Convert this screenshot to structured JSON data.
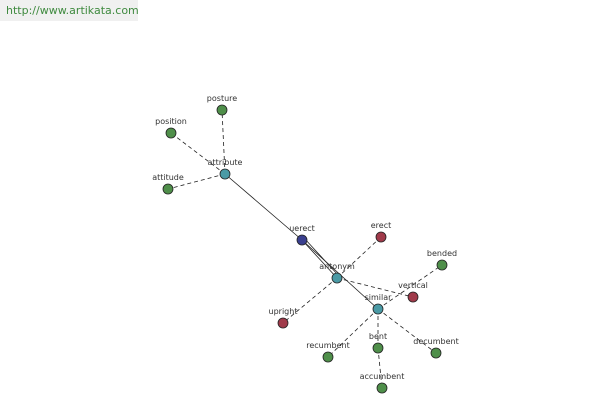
{
  "header": {
    "url": "http://www.artikata.com"
  },
  "nodes": [
    {
      "label": "uerect"
    },
    {
      "label": "attribute"
    },
    {
      "label": "antonym"
    },
    {
      "label": "similar"
    },
    {
      "label": "posture"
    },
    {
      "label": "position"
    },
    {
      "label": "attitude"
    },
    {
      "label": "erect"
    },
    {
      "label": "upright"
    },
    {
      "label": "vertical"
    },
    {
      "label": "bended"
    },
    {
      "label": "recumbent"
    },
    {
      "label": "bent"
    },
    {
      "label": "decumbent"
    },
    {
      "label": "accumbent"
    }
  ]
}
